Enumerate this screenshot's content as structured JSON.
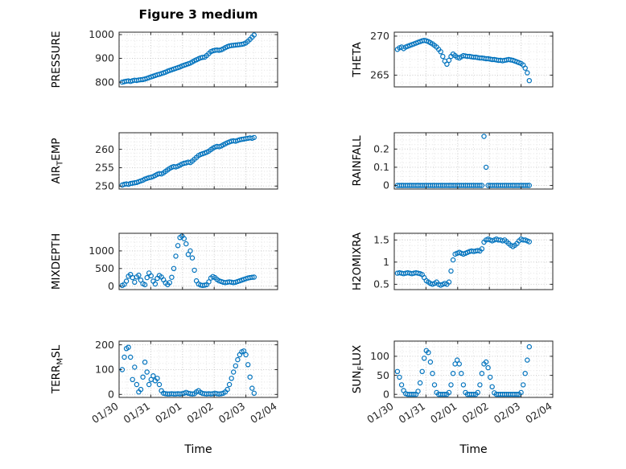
{
  "chart_data": {
    "type": "scatter",
    "title": "Figure 3 medium",
    "x_label": "Time",
    "marker_color": "#0072BD",
    "axis_color": "#262626",
    "x_tick_labels": [
      "01/30",
      "01/31",
      "02/01",
      "02/02",
      "02/03",
      "02/04"
    ],
    "x_tick_values": [
      0,
      1,
      2,
      3,
      4,
      5
    ],
    "xlim": [
      0,
      5
    ],
    "x_minor_step": 0.25,
    "x_days_since_01_30": [
      0.1,
      0.165,
      0.23,
      0.295,
      0.36,
      0.425,
      0.49,
      0.555,
      0.62,
      0.685,
      0.75,
      0.815,
      0.88,
      0.945,
      1.01,
      1.075,
      1.14,
      1.205,
      1.27,
      1.335,
      1.4,
      1.465,
      1.53,
      1.595,
      1.66,
      1.725,
      1.79,
      1.855,
      1.92,
      1.985,
      2.05,
      2.115,
      2.18,
      2.245,
      2.31,
      2.375,
      2.44,
      2.505,
      2.57,
      2.635,
      2.7,
      2.765,
      2.83,
      2.895,
      2.96,
      3.025,
      3.09,
      3.155,
      3.22,
      3.285,
      3.35,
      3.415,
      3.48,
      3.545,
      3.61,
      3.675,
      3.74,
      3.805,
      3.87,
      3.935,
      4.0,
      4.065,
      4.13,
      4.195,
      4.26
    ],
    "subplots": [
      {
        "id": "pressure",
        "name": "PRESSURE",
        "ylabel_pre": "PRESSURE",
        "ylabel_sub": "",
        "ylabel_post": "",
        "yticks": [
          800,
          900,
          1000
        ],
        "ytick_labels": [
          "800",
          "900",
          "1000"
        ],
        "ylim": [
          780,
          1010
        ],
        "y_minor_step": 25,
        "show_x_tick_labels": false,
        "y": [
          800,
          802,
          804,
          805,
          803,
          806,
          808,
          807,
          809,
          810,
          811,
          813,
          816,
          819,
          822,
          825,
          828,
          831,
          833,
          836,
          839,
          842,
          846,
          849,
          852,
          855,
          858,
          861,
          864,
          868,
          871,
          874,
          877,
          880,
          885,
          890,
          894,
          898,
          902,
          904,
          905,
          912,
          920,
          928,
          932,
          934,
          935,
          934,
          936,
          940,
          945,
          949,
          952,
          954,
          955,
          956,
          957,
          958,
          959,
          961,
          965,
          972,
          980,
          989,
          998
        ]
      },
      {
        "id": "theta",
        "name": "THETA",
        "ylabel_pre": "THETA",
        "ylabel_sub": "",
        "ylabel_post": "",
        "yticks": [
          265,
          270
        ],
        "ytick_labels": [
          "265",
          "270"
        ],
        "ylim": [
          263.5,
          270.5
        ],
        "y_minor_step": 1,
        "show_x_tick_labels": false,
        "y": [
          268.3,
          268.5,
          268.6,
          268.4,
          268.6,
          268.7,
          268.8,
          268.9,
          269.0,
          269.1,
          269.2,
          269.3,
          269.4,
          269.45,
          269.4,
          269.3,
          269.15,
          269.0,
          268.8,
          268.6,
          268.3,
          268.0,
          267.4,
          266.8,
          266.4,
          266.9,
          267.4,
          267.7,
          267.5,
          267.3,
          267.2,
          267.35,
          267.5,
          267.45,
          267.4,
          267.4,
          267.35,
          267.3,
          267.3,
          267.25,
          267.2,
          267.2,
          267.15,
          267.1,
          267.1,
          267.05,
          267.0,
          267.0,
          266.95,
          266.9,
          266.9,
          266.85,
          266.9,
          266.95,
          267.0,
          266.95,
          266.9,
          266.8,
          266.7,
          266.6,
          266.5,
          266.3,
          265.9,
          265.3,
          264.3
        ]
      },
      {
        "id": "air-temp",
        "name": "AIR_TEMP",
        "ylabel_pre": "AIR",
        "ylabel_sub": "T",
        "ylabel_post": "EMP",
        "yticks": [
          250,
          255,
          260
        ],
        "ytick_labels": [
          "250",
          "255",
          "260"
        ],
        "ylim": [
          249.2,
          264.5
        ],
        "y_minor_step": 1,
        "show_x_tick_labels": false,
        "y": [
          250.3,
          250.5,
          250.6,
          250.5,
          250.7,
          250.8,
          250.9,
          251.0,
          251.2,
          251.4,
          251.6,
          251.9,
          252.1,
          252.3,
          252.4,
          252.6,
          252.9,
          253.2,
          253.4,
          253.3,
          253.6,
          254.0,
          254.4,
          254.8,
          255.1,
          255.3,
          255.2,
          255.4,
          255.7,
          256.0,
          256.2,
          256.3,
          256.5,
          256.4,
          256.8,
          257.3,
          257.8,
          258.3,
          258.6,
          258.8,
          259.0,
          259.2,
          259.5,
          259.9,
          260.3,
          260.6,
          260.8,
          260.7,
          260.9,
          261.2,
          261.5,
          261.8,
          262.0,
          262.2,
          262.3,
          262.2,
          262.4,
          262.6,
          262.7,
          262.8,
          262.9,
          263.0,
          263.1,
          263.0,
          263.2
        ]
      },
      {
        "id": "rainfall",
        "name": "RAINFALL",
        "ylabel_pre": "RAINFALL",
        "ylabel_sub": "",
        "ylabel_post": "",
        "yticks": [
          0,
          0.1,
          0.2
        ],
        "ytick_labels": [
          "0",
          "0.1",
          "0.2"
        ],
        "ylim": [
          -0.02,
          0.29
        ],
        "y_minor_step": 0.025,
        "show_x_tick_labels": false,
        "y": [
          0,
          0,
          0,
          0,
          0,
          0,
          0,
          0,
          0,
          0,
          0,
          0,
          0,
          0,
          0,
          0,
          0,
          0,
          0,
          0,
          0,
          0,
          0,
          0,
          0,
          0,
          0,
          0,
          0,
          0,
          0,
          0,
          0,
          0,
          0,
          0,
          0,
          0,
          0,
          0,
          0,
          0,
          0.27,
          0.1,
          0,
          0,
          0,
          0,
          0,
          0,
          0,
          0,
          0,
          0,
          0,
          0,
          0,
          0,
          0,
          0,
          0,
          0,
          0,
          0,
          0
        ]
      },
      {
        "id": "mixdepth",
        "name": "MIXDEPTH",
        "ylabel_pre": "MIXDEPTH",
        "ylabel_sub": "",
        "ylabel_post": "",
        "yticks": [
          0,
          500,
          1000
        ],
        "ytick_labels": [
          "0",
          "500",
          "1000"
        ],
        "ylim": [
          -100,
          1500
        ],
        "y_minor_step": 125,
        "show_x_tick_labels": false,
        "y": [
          20,
          50,
          140,
          280,
          330,
          240,
          110,
          260,
          310,
          170,
          70,
          40,
          240,
          370,
          290,
          140,
          60,
          220,
          300,
          260,
          180,
          90,
          40,
          100,
          250,
          500,
          850,
          1150,
          1380,
          1420,
          1350,
          1200,
          900,
          1000,
          800,
          450,
          150,
          60,
          30,
          20,
          25,
          40,
          120,
          230,
          270,
          240,
          190,
          150,
          130,
          110,
          100,
          110,
          120,
          110,
          100,
          110,
          130,
          150,
          170,
          190,
          210,
          230,
          240,
          250,
          255
        ]
      },
      {
        "id": "h2omixra",
        "name": "H2OMIXRA",
        "ylabel_pre": "H2OMIXRA",
        "ylabel_sub": "",
        "ylabel_post": "",
        "yticks": [
          0.5,
          1,
          1.5
        ],
        "ytick_labels": [
          "0.5",
          "1",
          "1.5"
        ],
        "ylim": [
          0.38,
          1.65
        ],
        "y_minor_step": 0.125,
        "show_x_tick_labels": false,
        "y": [
          0.75,
          0.76,
          0.75,
          0.74,
          0.75,
          0.76,
          0.75,
          0.74,
          0.75,
          0.76,
          0.75,
          0.74,
          0.72,
          0.65,
          0.58,
          0.55,
          0.52,
          0.5,
          0.52,
          0.55,
          0.5,
          0.48,
          0.5,
          0.52,
          0.5,
          0.55,
          0.8,
          1.05,
          1.18,
          1.2,
          1.22,
          1.2,
          1.18,
          1.2,
          1.22,
          1.24,
          1.25,
          1.24,
          1.25,
          1.26,
          1.25,
          1.3,
          1.45,
          1.5,
          1.52,
          1.5,
          1.48,
          1.5,
          1.52,
          1.5,
          1.5,
          1.48,
          1.5,
          1.46,
          1.42,
          1.38,
          1.35,
          1.38,
          1.42,
          1.48,
          1.52,
          1.5,
          1.5,
          1.48,
          1.46
        ]
      },
      {
        "id": "terr-msl",
        "name": "TERR_MSL",
        "ylabel_pre": "TERR",
        "ylabel_sub": "M",
        "ylabel_post": "SL",
        "yticks": [
          0,
          100,
          200
        ],
        "ytick_labels": [
          "0",
          "100",
          "200"
        ],
        "ylim": [
          -12,
          215
        ],
        "y_minor_step": 25,
        "show_x_tick_labels": true,
        "y": [
          100,
          150,
          185,
          190,
          150,
          60,
          110,
          40,
          10,
          20,
          70,
          130,
          90,
          40,
          60,
          75,
          55,
          65,
          40,
          15,
          5,
          3,
          2,
          2,
          3,
          2,
          2,
          3,
          2,
          3,
          5,
          8,
          5,
          3,
          2,
          3,
          10,
          15,
          8,
          4,
          3,
          2,
          3,
          2,
          3,
          5,
          3,
          2,
          3,
          5,
          10,
          20,
          40,
          65,
          90,
          115,
          140,
          160,
          172,
          175,
          160,
          120,
          70,
          25,
          5
        ]
      },
      {
        "id": "sun-flux",
        "name": "SUN_FLUX",
        "ylabel_pre": "SUN",
        "ylabel_sub": "F",
        "ylabel_post": "LUX",
        "yticks": [
          0,
          50,
          100
        ],
        "ytick_labels": [
          "0",
          "50",
          "100"
        ],
        "ylim": [
          -8,
          140
        ],
        "y_minor_step": 12.5,
        "show_x_tick_labels": true,
        "y": [
          60,
          45,
          25,
          10,
          2,
          0,
          0,
          0,
          0,
          0,
          8,
          30,
          60,
          95,
          115,
          110,
          85,
          55,
          25,
          5,
          0,
          0,
          0,
          0,
          0,
          5,
          25,
          55,
          80,
          90,
          80,
          55,
          25,
          5,
          0,
          0,
          0,
          0,
          0,
          5,
          25,
          55,
          80,
          85,
          70,
          45,
          20,
          4,
          0,
          0,
          0,
          0,
          0,
          0,
          0,
          0,
          0,
          0,
          0,
          0,
          5,
          25,
          55,
          90,
          125
        ]
      }
    ]
  }
}
